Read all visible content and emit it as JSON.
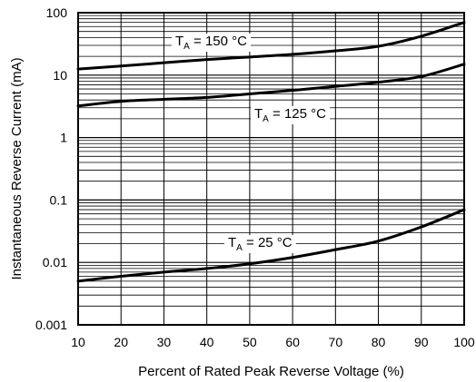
{
  "chart_data": {
    "type": "line",
    "xlabel": "Percent of Rated Peak Reverse Voltage (%)",
    "ylabel": "Instantaneous Reverse Current (mA)",
    "xlim": [
      10,
      100
    ],
    "ylim": [
      0.001,
      100
    ],
    "yscale": "log",
    "grid": true,
    "x_ticks": [
      "10",
      "20",
      "30",
      "40",
      "50",
      "60",
      "70",
      "80",
      "90",
      "100"
    ],
    "y_ticks": [
      "0.001",
      "0.01",
      "0.1",
      "1",
      "10",
      "100"
    ],
    "series": [
      {
        "name": "T_A = 150 °C",
        "label_prefix": "T",
        "label_sub": "A",
        "label_suffix": " = 150 °C",
        "x": [
          10,
          20,
          30,
          40,
          50,
          60,
          70,
          80,
          90,
          100
        ],
        "y": [
          12.5,
          14,
          15.8,
          17.8,
          19.5,
          21.5,
          24.5,
          29,
          42,
          70
        ]
      },
      {
        "name": "T_A = 125 °C",
        "label_prefix": "T",
        "label_sub": "A",
        "label_suffix": " = 125 °C",
        "x": [
          10,
          20,
          30,
          40,
          50,
          60,
          70,
          80,
          90,
          100
        ],
        "y": [
          3.2,
          3.8,
          4.1,
          4.4,
          5.0,
          5.7,
          6.6,
          7.7,
          9.5,
          15
        ]
      },
      {
        "name": "T_A = 25 °C",
        "label_prefix": "T",
        "label_sub": "A",
        "label_suffix": " = 25 °C",
        "x": [
          10,
          20,
          30,
          40,
          50,
          60,
          70,
          80,
          90,
          100
        ],
        "y": [
          0.005,
          0.006,
          0.007,
          0.008,
          0.0095,
          0.012,
          0.016,
          0.022,
          0.037,
          0.07
        ]
      }
    ]
  }
}
